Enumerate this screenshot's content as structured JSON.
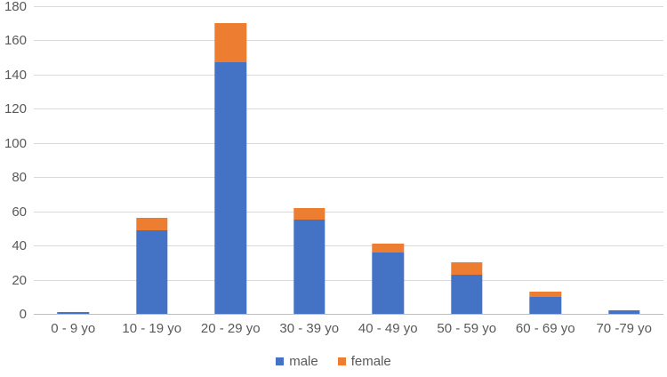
{
  "chart_data": {
    "type": "bar",
    "stacked": true,
    "title": "",
    "xlabel": "",
    "ylabel": "",
    "categories": [
      "0 - 9 yo",
      "10 - 19 yo",
      "20 - 29 yo",
      "30 - 39 yo",
      "40 - 49 yo",
      "50 - 59 yo",
      "60 - 69 yo",
      "70 -79 yo"
    ],
    "series": [
      {
        "name": "male",
        "color": "#4472C4",
        "values": [
          1,
          49,
          147,
          55,
          36,
          23,
          10,
          2
        ]
      },
      {
        "name": "female",
        "color": "#ED7D31",
        "values": [
          0,
          7,
          23,
          7,
          5,
          7,
          3,
          0
        ]
      }
    ],
    "totals": [
      1,
      56,
      170,
      62,
      41,
      30,
      13,
      2
    ],
    "ylim": [
      0,
      180
    ],
    "yticks": [
      0,
      20,
      40,
      60,
      80,
      100,
      120,
      140,
      160,
      180
    ],
    "grid": "horizontal",
    "legend_position": "bottom"
  },
  "legend": {
    "items": [
      {
        "label": "male",
        "color": "#4472C4"
      },
      {
        "label": "female",
        "color": "#ED7D31"
      }
    ]
  },
  "colors": {
    "male": "#4472C4",
    "female": "#ED7D31",
    "gridline": "#D9D9D9",
    "axis_line": "#BFBFBF",
    "label_text": "#595959",
    "background": "#FFFFFF"
  }
}
